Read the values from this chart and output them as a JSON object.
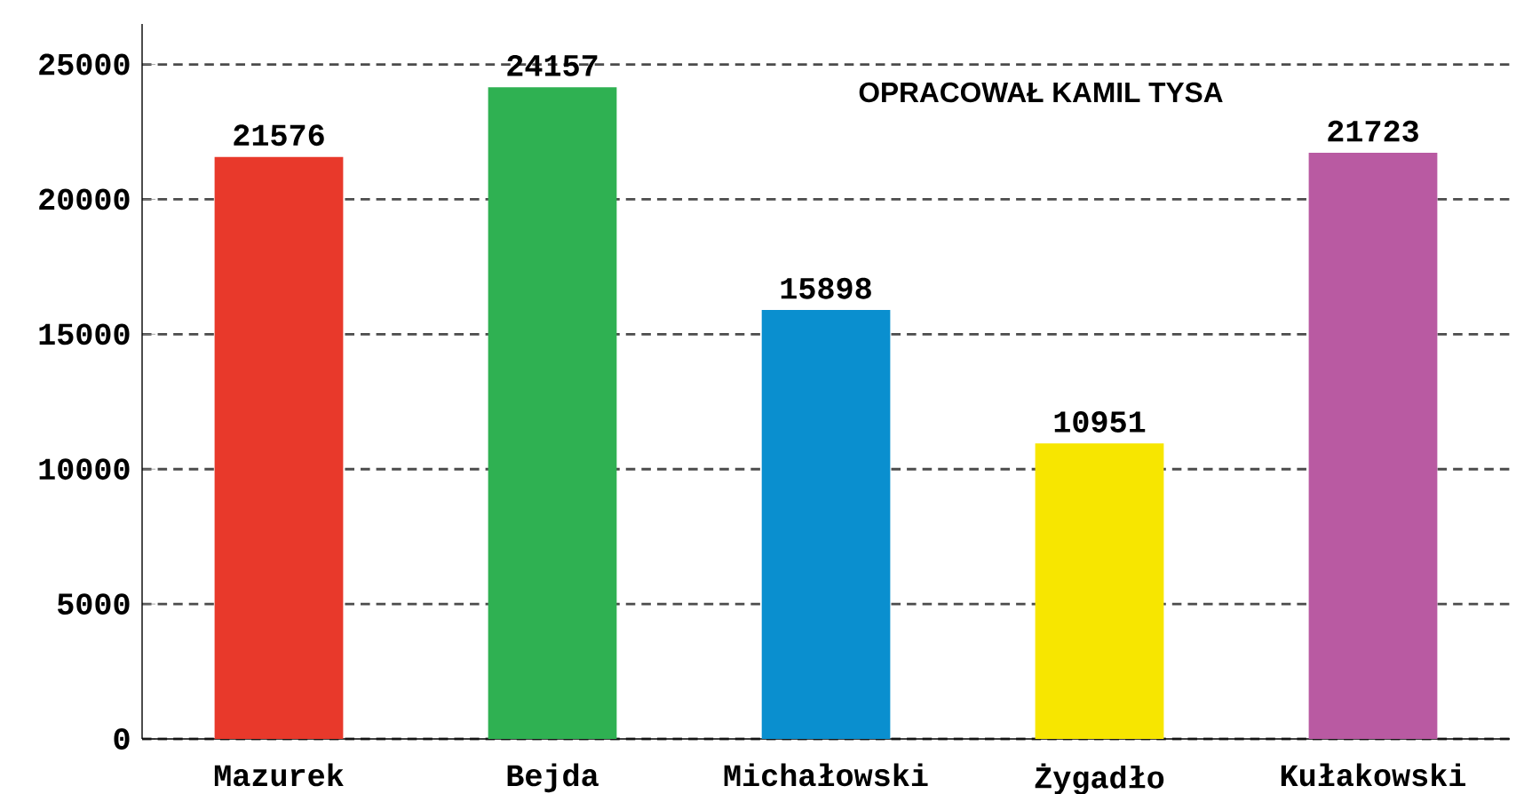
{
  "chart_data": {
    "type": "bar",
    "categories": [
      "Mazurek",
      "Bejda",
      "Michałowski",
      "Żygadło",
      "Kułakowski"
    ],
    "values": [
      21576,
      24157,
      15898,
      10951,
      21723
    ],
    "colors": [
      "#e8392b",
      "#2fb152",
      "#0a8fcf",
      "#f7e600",
      "#b95aa2"
    ],
    "ylim": [
      0,
      26500
    ],
    "yticks": [
      0,
      5000,
      10000,
      15000,
      20000,
      25000
    ],
    "grid": "y",
    "data_labels": true,
    "annotations": [
      "OPRACOWAŁ KAMIL TYSA"
    ]
  }
}
